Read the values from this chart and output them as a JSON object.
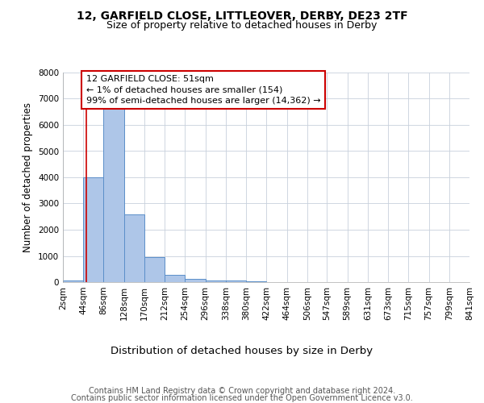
{
  "title1": "12, GARFIELD CLOSE, LITTLEOVER, DERBY, DE23 2TF",
  "title2": "Size of property relative to detached houses in Derby",
  "xlabel": "Distribution of detached houses by size in Derby",
  "ylabel": "Number of detached properties",
  "bin_edges": [
    2,
    44,
    86,
    128,
    170,
    212,
    254,
    296,
    338,
    380,
    422,
    464,
    506,
    547,
    589,
    631,
    673,
    715,
    757,
    799,
    841
  ],
  "bar_heights": [
    75,
    4000,
    6600,
    2600,
    960,
    290,
    120,
    70,
    65,
    20,
    0,
    0,
    0,
    0,
    0,
    0,
    0,
    0,
    0,
    0
  ],
  "bar_color": "#aec6e8",
  "bar_edge_color": "#5b8fc9",
  "property_line_x": 51,
  "property_line_color": "#cc0000",
  "annotation_text": "12 GARFIELD CLOSE: 51sqm\n← 1% of detached houses are smaller (154)\n99% of semi-detached houses are larger (14,362) →",
  "annotation_box_color": "#cc0000",
  "ylim": [
    0,
    8000
  ],
  "yticks": [
    0,
    1000,
    2000,
    3000,
    4000,
    5000,
    6000,
    7000,
    8000
  ],
  "xtick_labels": [
    "2sqm",
    "44sqm",
    "86sqm",
    "128sqm",
    "170sqm",
    "212sqm",
    "254sqm",
    "296sqm",
    "338sqm",
    "380sqm",
    "422sqm",
    "464sqm",
    "506sqm",
    "547sqm",
    "589sqm",
    "631sqm",
    "673sqm",
    "715sqm",
    "757sqm",
    "799sqm",
    "841sqm"
  ],
  "footer1": "Contains HM Land Registry data © Crown copyright and database right 2024.",
  "footer2": "Contains public sector information licensed under the Open Government Licence v3.0.",
  "bg_color": "#ffffff",
  "grid_color": "#c8d0dc",
  "title1_fontsize": 10,
  "title2_fontsize": 9,
  "xlabel_fontsize": 9.5,
  "ylabel_fontsize": 8.5,
  "tick_fontsize": 7.5,
  "footer_fontsize": 7,
  "annotation_fontsize": 8
}
